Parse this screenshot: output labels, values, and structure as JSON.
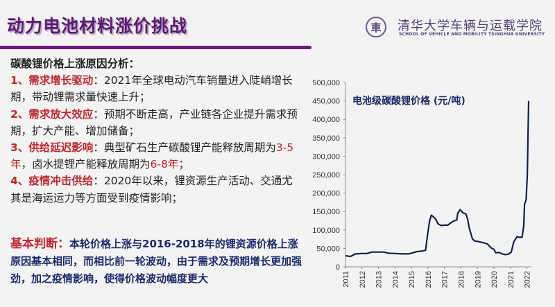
{
  "header": {
    "title": "动力电池材料涨价挑战",
    "logo_glyph": "車",
    "school_cn": "清华大学车辆与运载学院",
    "school_en": "SCHOOL OF VEHICLE AND MOBILITY TSINGHUA UNIVERSITY"
  },
  "analysis": {
    "heading": "碳酸锂价格上涨原因分析：",
    "items": [
      {
        "num": "1、",
        "label": "需求增长驱动",
        "sep": "：",
        "text": "2021年全球电动汽车销量进入陡峭增长期，带动锂需求量快速上升；"
      },
      {
        "num": "2、",
        "label": "需求放大效应",
        "sep": "：",
        "text": "预期不断走高，产业链各企业提升需求预期，扩大产能、增加储备；"
      },
      {
        "num": "3、",
        "label": "供给延迟影响",
        "sep": "：",
        "text_a": "典型矿石生产碳酸锂产能释放周期为",
        "hl_a": "3-5年",
        "text_b": "，卤水提锂产能释放周期为",
        "hl_b": "6-8年",
        "text_c": "；"
      },
      {
        "num": "4、",
        "label": "疫情冲击供给",
        "sep": "：",
        "text": "2020年以来，锂资源生产活动、交通尤其是海运运力等方面受到疫情影响；"
      }
    ]
  },
  "judgment": {
    "label": "基本判断：",
    "text": "本轮价格上涨与2016-2018年的锂资源价格上涨原因基本相同，而相比前一轮波动，由于需求及预期增长更加强劲，加之疫情影响，使得价格波动幅度更大"
  },
  "chart_data": {
    "type": "line",
    "title": "电池级碳酸锂价格 (元/吨)",
    "ylim": [
      0,
      500000
    ],
    "yticks": [
      "0",
      "50,000",
      "100,000",
      "150,000",
      "200,000",
      "250,000",
      "300,000",
      "350,000",
      "400,000",
      "450,000",
      "500,000"
    ],
    "xticks": [
      "2011",
      "2012",
      "2013",
      "2014",
      "2015",
      "2016",
      "2017",
      "2018",
      "2019",
      "2020",
      "2021",
      "2022"
    ],
    "grid": false,
    "color": "#14204a",
    "x": [
      2011,
      2011.3,
      2011.6,
      2012,
      2012.3,
      2012.6,
      2013,
      2013.3,
      2013.6,
      2014,
      2014.5,
      2014.8,
      2015,
      2015.3,
      2015.7,
      2015.85,
      2016,
      2016.1,
      2016.2,
      2016.35,
      2016.5,
      2016.6,
      2016.8,
      2017,
      2017.2,
      2017.4,
      2017.6,
      2017.75,
      2017.8,
      2017.95,
      2018.1,
      2018.3,
      2018.4,
      2018.5,
      2018.7,
      2018.85,
      2019,
      2019.2,
      2019.4,
      2019.6,
      2019.8,
      2020,
      2020.1,
      2020.3,
      2020.5,
      2020.7,
      2020.9,
      2021.05,
      2021.2,
      2021.4,
      2021.5,
      2021.7,
      2021.8,
      2021.85,
      2021.95,
      2022.02,
      2022.1
    ],
    "y": [
      30000,
      28000,
      35000,
      36000,
      36000,
      40000,
      40000,
      40000,
      37000,
      36000,
      35000,
      35000,
      37000,
      41000,
      43000,
      45000,
      95000,
      125000,
      140000,
      135000,
      127000,
      117000,
      112000,
      113000,
      113000,
      120000,
      125000,
      127000,
      145000,
      155000,
      147000,
      143000,
      130000,
      105000,
      75000,
      70000,
      69000,
      67000,
      65000,
      62000,
      52000,
      47000,
      38000,
      39000,
      35000,
      33000,
      35000,
      40000,
      68000,
      82000,
      80000,
      80000,
      110000,
      170000,
      182000,
      250000,
      450000
    ]
  }
}
